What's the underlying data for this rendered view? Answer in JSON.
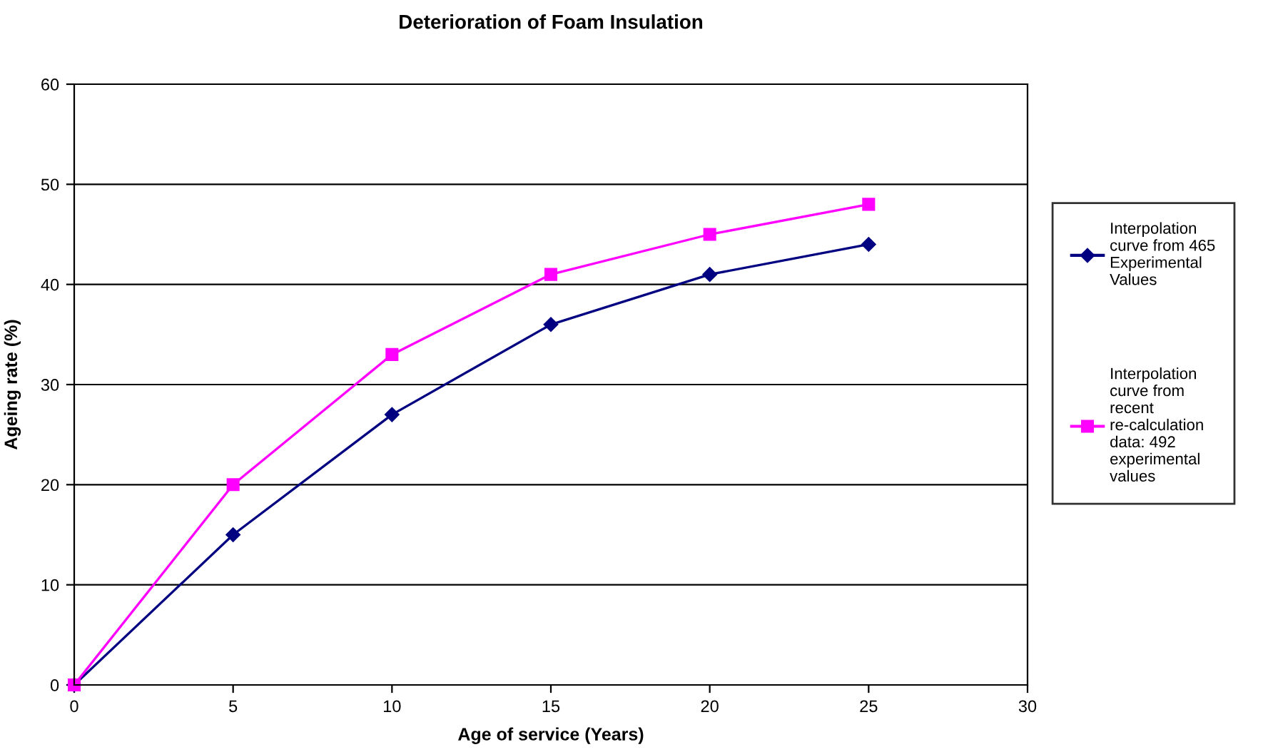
{
  "chart_data": {
    "type": "line",
    "title": "Deterioration of Foam Insulation",
    "xlabel": "Age of service (Years)",
    "ylabel": "Ageing rate (%)",
    "x": [
      0,
      5,
      10,
      15,
      20,
      25
    ],
    "series": [
      {
        "name": "Interpolation curve from 465 Experimental Values",
        "color": "#000080",
        "marker": "diamond",
        "values": [
          0,
          15,
          27,
          36,
          41,
          44
        ]
      },
      {
        "name": "Interpolation curve from recent re-calculation data: 492 experimental values",
        "color": "#ff00ff",
        "marker": "square",
        "values": [
          0,
          20,
          33,
          41,
          45,
          48
        ]
      }
    ],
    "xlim": [
      0,
      30
    ],
    "xticks": [
      0,
      5,
      10,
      15,
      20,
      25,
      30
    ],
    "ylim": [
      0,
      60
    ],
    "yticks": [
      0,
      10,
      20,
      30,
      40,
      50,
      60
    ],
    "grid": "y",
    "legend": "right",
    "line_style": "solid"
  }
}
